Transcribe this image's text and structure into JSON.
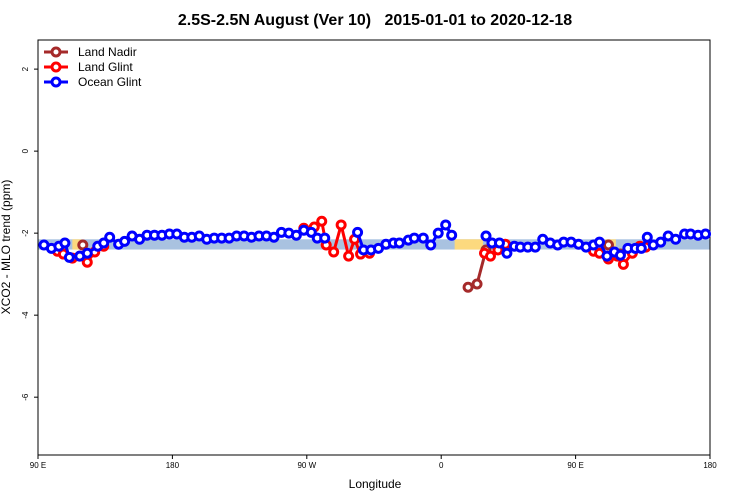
{
  "chart_data": {
    "type": "line",
    "title": "2.5S-2.5N August (Ver 10)   2015-01-01 to 2020-12-18",
    "x_label": "Longitude",
    "y_label": "XCO2 - MLO trend (ppm)",
    "xlim": [
      90,
      540
    ],
    "ylim": [
      -7.41,
      2.71
    ],
    "xticks": [
      {
        "value": 90,
        "label": "90 E"
      },
      180,
      {
        "value": 270,
        "label": "90 W"
      },
      {
        "value": 360,
        "label": "0"
      },
      {
        "value": 450,
        "label": "90 E"
      },
      {
        "value": 540,
        "label": "180"
      }
    ],
    "yticks": [
      -6,
      -4,
      -2,
      0,
      2
    ],
    "legend_position": "top-left",
    "band": {
      "low": -2.4,
      "high": -2.15,
      "color": "#a9c2e0"
    },
    "band_highlights": {
      "color": "#fcd97e",
      "ranges": [
        [
          113,
          119
        ],
        [
          369,
          388
        ],
        [
          470,
          477
        ]
      ]
    },
    "series": [
      {
        "name": "Land Nadir",
        "color": "#a52a2a",
        "x": [
          120,
          250,
          378,
          384,
          390,
          430,
          472,
          480
        ],
        "values": [
          -2.29,
          null,
          -3.32,
          -3.24,
          -2.41,
          null,
          -2.29,
          -2.51
        ]
      },
      {
        "name": "Land Glint",
        "color": "#ff0000",
        "x": [
          103,
          107,
          113,
          118,
          123,
          128,
          134,
          200,
          268,
          275,
          280,
          283,
          288,
          293,
          298,
          302,
          306,
          312,
          350,
          389,
          393,
          398,
          403,
          430,
          462,
          466,
          472,
          478,
          482,
          488,
          493,
          497
        ],
        "values": [
          -2.44,
          -2.51,
          -2.61,
          -2.56,
          -2.71,
          -2.46,
          -2.32,
          null,
          -1.88,
          -1.85,
          -1.71,
          -2.29,
          -2.46,
          -1.8,
          -2.56,
          -2.15,
          -2.51,
          -2.49,
          null,
          -2.49,
          -2.56,
          -2.41,
          -2.27,
          null,
          -2.44,
          -2.49,
          -2.63,
          -2.56,
          -2.76,
          -2.49,
          -2.32,
          -2.34
        ]
      },
      {
        "name": "Ocean Glint",
        "color": "#0000ff",
        "x": [
          94,
          99,
          104,
          108,
          111,
          118,
          123,
          130,
          134,
          138,
          144,
          148,
          153,
          158,
          163,
          168,
          173,
          178,
          183,
          188,
          193,
          198,
          203,
          208,
          213,
          218,
          223,
          228,
          233,
          238,
          243,
          248,
          253,
          258,
          263,
          268,
          273,
          277,
          282,
          293,
          304,
          308,
          313,
          318,
          323,
          328,
          332,
          338,
          342,
          348,
          353,
          358,
          363,
          367,
          378,
          390,
          394,
          399,
          404,
          409,
          413,
          418,
          423,
          428,
          433,
          438,
          442,
          447,
          452,
          457,
          462,
          466,
          471,
          476,
          480,
          485,
          490,
          494,
          498,
          502,
          507,
          512,
          517,
          523,
          527,
          532,
          537
        ],
        "values": [
          -2.29,
          -2.37,
          -2.32,
          -2.24,
          -2.59,
          -2.56,
          -2.49,
          -2.32,
          -2.24,
          -2.1,
          -2.27,
          -2.2,
          -2.07,
          -2.15,
          -2.05,
          -2.05,
          -2.05,
          -2.02,
          -2.02,
          -2.1,
          -2.1,
          -2.07,
          -2.15,
          -2.12,
          -2.12,
          -2.12,
          -2.07,
          -2.07,
          -2.1,
          -2.07,
          -2.07,
          -2.1,
          -1.98,
          -2.0,
          -2.05,
          -1.93,
          -1.98,
          -2.12,
          -2.12,
          null,
          -1.98,
          -2.41,
          -2.41,
          -2.37,
          -2.27,
          -2.24,
          -2.24,
          -2.17,
          -2.12,
          -2.12,
          -2.29,
          -2.0,
          -1.8,
          -2.05,
          null,
          -2.07,
          -2.24,
          -2.24,
          -2.49,
          -2.32,
          -2.34,
          -2.34,
          -2.34,
          -2.15,
          -2.24,
          -2.29,
          -2.22,
          -2.22,
          -2.27,
          -2.34,
          -2.29,
          -2.22,
          -2.56,
          -2.46,
          -2.54,
          -2.37,
          -2.37,
          -2.37,
          -2.1,
          -2.29,
          -2.22,
          -2.07,
          -2.15,
          -2.02,
          -2.02,
          -2.05,
          -2.02
        ]
      }
    ]
  }
}
